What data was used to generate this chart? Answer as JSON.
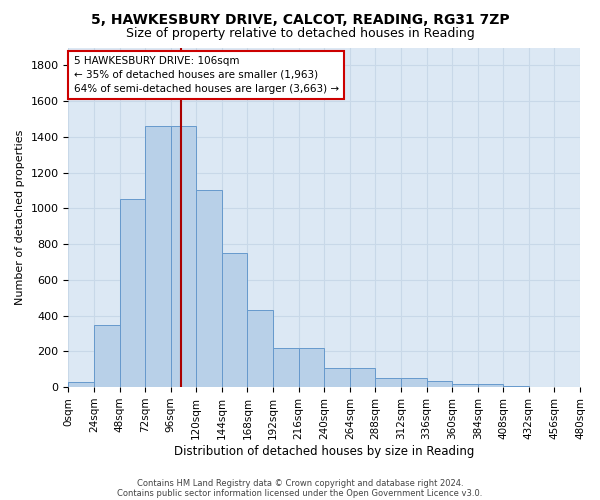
{
  "title1": "5, HAWKESBURY DRIVE, CALCOT, READING, RG31 7ZP",
  "title2": "Size of property relative to detached houses in Reading",
  "xlabel": "Distribution of detached houses by size in Reading",
  "ylabel": "Number of detached properties",
  "footer1": "Contains HM Land Registry data © Crown copyright and database right 2024.",
  "footer2": "Contains public sector information licensed under the Open Government Licence v3.0.",
  "annotation_line1": "5 HAWKESBURY DRIVE: 106sqm",
  "annotation_line2": "← 35% of detached houses are smaller (1,963)",
  "annotation_line3": "64% of semi-detached houses are larger (3,663) →",
  "property_size": 106,
  "bins": [
    0,
    24,
    48,
    72,
    96,
    120,
    144,
    168,
    192,
    216,
    240,
    264,
    288,
    312,
    336,
    360,
    384,
    408,
    432,
    456,
    480
  ],
  "bin_labels": [
    "0sqm",
    "24sqm",
    "48sqm",
    "72sqm",
    "96sqm",
    "120sqm",
    "144sqm",
    "168sqm",
    "192sqm",
    "216sqm",
    "240sqm",
    "264sqm",
    "288sqm",
    "312sqm",
    "336sqm",
    "360sqm",
    "384sqm",
    "408sqm",
    "432sqm",
    "456sqm",
    "480sqm"
  ],
  "counts": [
    30,
    350,
    1050,
    1460,
    1460,
    1100,
    750,
    430,
    220,
    220,
    105,
    105,
    50,
    50,
    35,
    20,
    15,
    5,
    2,
    0,
    0
  ],
  "bar_color": "#b8d0e8",
  "bar_edge_color": "#6699cc",
  "vline_color": "#aa0000",
  "vline_x": 106,
  "ylim": [
    0,
    1900
  ],
  "yticks": [
    0,
    200,
    400,
    600,
    800,
    1000,
    1200,
    1400,
    1600,
    1800
  ],
  "grid_color": "#c8d8e8",
  "bg_color": "#dce8f4",
  "annotation_box_color": "#cc0000",
  "title1_fontsize": 10,
  "title2_fontsize": 9,
  "xlabel_fontsize": 8.5,
  "ylabel_fontsize": 8,
  "tick_fontsize": 8,
  "xtick_fontsize": 7.5
}
